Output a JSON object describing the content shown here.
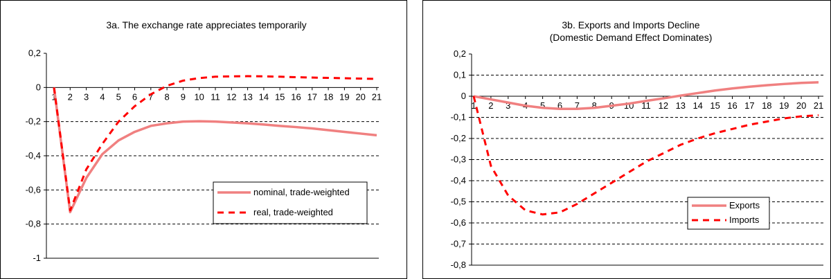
{
  "chart_data": [
    {
      "type": "line",
      "title": "3a. The exchange rate appreciates temporarily",
      "subtitle": "",
      "xlabel": "",
      "ylabel": "",
      "categories": [
        "1",
        "2",
        "3",
        "4",
        "5",
        "6",
        "7",
        "8",
        "9",
        "10",
        "11",
        "12",
        "13",
        "14",
        "15",
        "16",
        "17",
        "18",
        "19",
        "20",
        "21"
      ],
      "yticks": [
        "0,2",
        "0",
        "-0,2",
        "-0,4",
        "-0,6",
        "-0,8",
        "-1"
      ],
      "ylim": [
        -1,
        0.2
      ],
      "grid": "horizontal dashed",
      "legend_position": "bottom-right",
      "series": [
        {
          "name": "nominal, trade-weighted",
          "style": "solid",
          "color": "#f08080",
          "values": [
            0,
            -0.73,
            -0.53,
            -0.39,
            -0.31,
            -0.26,
            -0.225,
            -0.21,
            -0.2,
            -0.198,
            -0.2,
            -0.205,
            -0.21,
            -0.217,
            -0.225,
            -0.232,
            -0.24,
            -0.25,
            -0.26,
            -0.27,
            -0.28
          ]
        },
        {
          "name": "real, trade-weighted",
          "style": "dashed",
          "color": "#ff0000",
          "values": [
            0,
            -0.72,
            -0.48,
            -0.33,
            -0.2,
            -0.11,
            -0.04,
            0.01,
            0.04,
            0.055,
            0.063,
            0.065,
            0.066,
            0.065,
            0.063,
            0.06,
            0.058,
            0.056,
            0.054,
            0.052,
            0.05
          ]
        }
      ]
    },
    {
      "type": "line",
      "title": "3b. Exports and Imports Decline",
      "subtitle": "(Domestic Demand Effect Dominates)",
      "xlabel": "",
      "ylabel": "",
      "categories": [
        "1",
        "2",
        "3",
        "4",
        "5",
        "6",
        "7",
        "8",
        "9",
        "10",
        "11",
        "12",
        "13",
        "14",
        "15",
        "16",
        "17",
        "18",
        "19",
        "20",
        "21"
      ],
      "yticks": [
        "0,2",
        "0,1",
        "0",
        "-0,1",
        "-0,2",
        "-0,3",
        "-0,4",
        "-0,5",
        "-0,6",
        "-0,7",
        "-0,8"
      ],
      "ylim": [
        -0.8,
        0.2
      ],
      "grid": "horizontal dashed",
      "legend_position": "right",
      "series": [
        {
          "name": "Exports",
          "style": "solid",
          "color": "#f08080",
          "values": [
            0,
            -0.015,
            -0.03,
            -0.045,
            -0.055,
            -0.06,
            -0.06,
            -0.055,
            -0.045,
            -0.035,
            -0.022,
            -0.01,
            0.003,
            0.015,
            0.027,
            0.037,
            0.045,
            0.052,
            0.058,
            0.063,
            0.066
          ]
        },
        {
          "name": "Imports",
          "style": "dashed",
          "color": "#ff0000",
          "values": [
            0,
            -0.33,
            -0.47,
            -0.54,
            -0.56,
            -0.55,
            -0.51,
            -0.46,
            -0.41,
            -0.36,
            -0.31,
            -0.27,
            -0.23,
            -0.2,
            -0.175,
            -0.155,
            -0.135,
            -0.12,
            -0.105,
            -0.095,
            -0.09
          ]
        }
      ]
    }
  ]
}
